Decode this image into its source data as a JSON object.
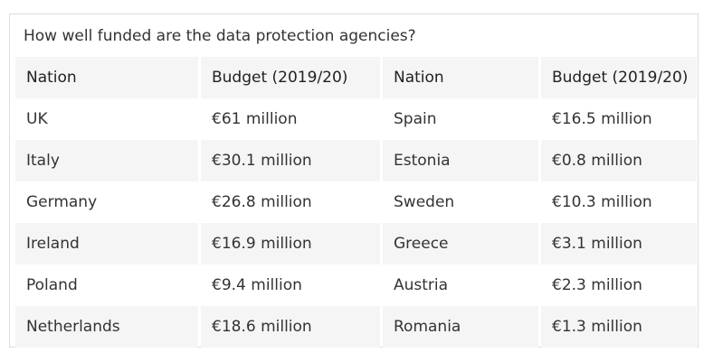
{
  "caption": "How well funded are the data protection agencies?",
  "headers": [
    "Nation",
    "Budget (2019/20)",
    "Nation",
    "Budget (2019/20)"
  ],
  "rows": [
    [
      "UK",
      "€61 million",
      "Spain",
      "€16.5 million"
    ],
    [
      "Italy",
      "€30.1 million",
      "Estonia",
      "€0.8 million"
    ],
    [
      "Germany",
      "€26.8 million",
      "Sweden",
      "€10.3 million"
    ],
    [
      "Ireland",
      "€16.9 million",
      "Greece",
      "€3.1 million"
    ],
    [
      "Poland",
      "€9.4 million",
      "Austria",
      "€2.3 million"
    ],
    [
      "Netherlands",
      "€18.6 million",
      "Romania",
      "€1.3 million"
    ]
  ]
}
